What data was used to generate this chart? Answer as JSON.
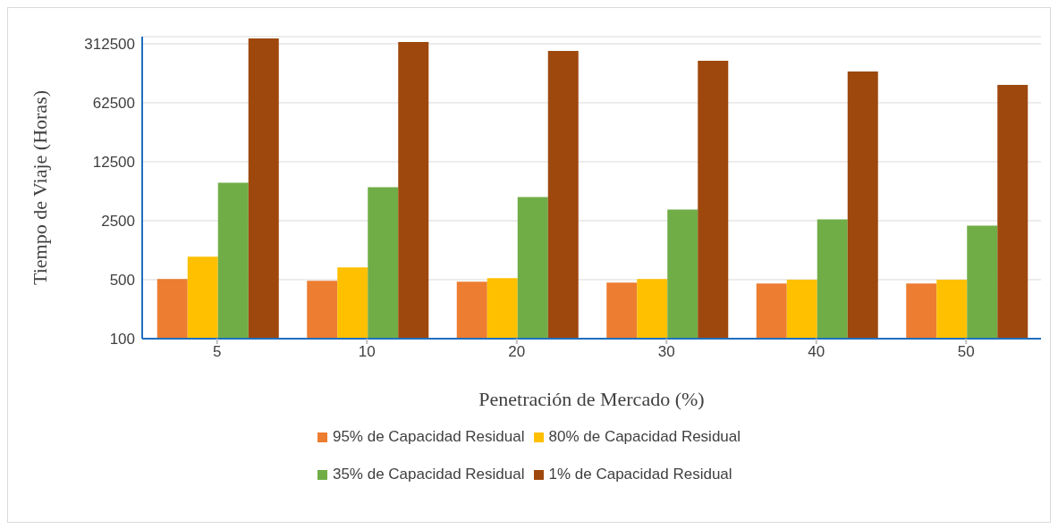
{
  "chart_data": {
    "type": "bar",
    "xlabel": "Penetración de Mercado (%)",
    "ylabel": "Tiempo de Viaje (Horas)",
    "categories": [
      "5",
      "10",
      "20",
      "30",
      "40",
      "50"
    ],
    "log": true,
    "ylim": [
      100,
      380000
    ],
    "yticks": [
      100,
      500,
      2500,
      12500,
      62500,
      312500
    ],
    "grid": "y",
    "legend": "bottom",
    "series": [
      {
        "name": "95% de Capacidad Residual",
        "color": "#ed7d31",
        "values": [
          510,
          486,
          474,
          463,
          451,
          450
        ]
      },
      {
        "name": "80% de Capacidad Residual",
        "color": "#ffc000",
        "values": [
          937,
          699,
          522,
          510,
          500,
          500
        ]
      },
      {
        "name": "35% de Capacidad Residual",
        "color": "#70ad47",
        "values": [
          7030,
          6230,
          4770,
          3390,
          2600,
          2190
        ]
      },
      {
        "name": "1% de Capacidad Residual",
        "color": "#9e480e",
        "values": [
          361000,
          327500,
          257000,
          197000,
          147000,
          102000
        ]
      }
    ]
  }
}
